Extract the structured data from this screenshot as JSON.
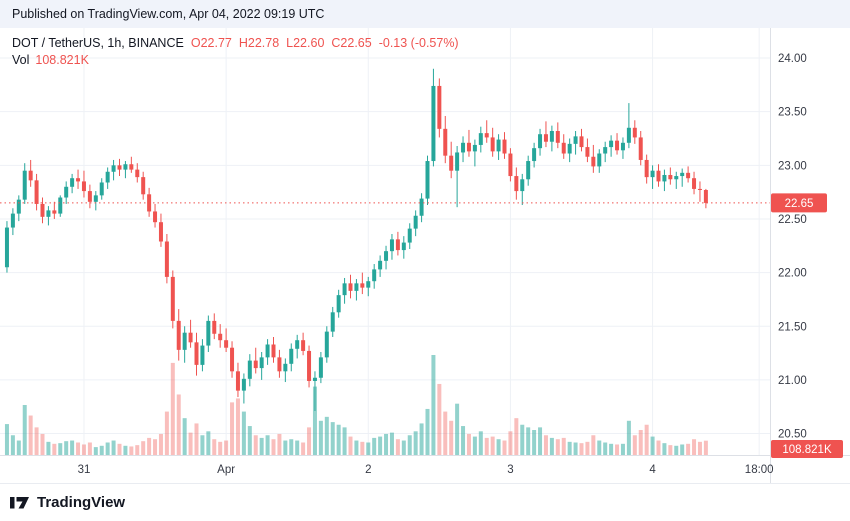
{
  "publish_bar": {
    "text": "Published on TradingView.com, Apr 04, 2022 09:19 UTC"
  },
  "legend": {
    "symbol_title": "DOT / TetherUS, 1h, BINANCE",
    "ohlc": [
      {
        "label": "O",
        "value": "22.77"
      },
      {
        "label": "H",
        "value": "22.78"
      },
      {
        "label": "L",
        "value": "22.60"
      },
      {
        "label": "C",
        "value": "22.65"
      }
    ],
    "change": "-0.13 (-0.57%)",
    "vol_label": "Vol",
    "vol_value": "108.821K"
  },
  "footer": {
    "brand": "TradingView"
  },
  "colors": {
    "up": "#26a69a",
    "down": "#ef5350",
    "vol_up": "rgba(38,166,154,0.5)",
    "vol_down": "rgba(239,83,80,0.38)",
    "grid": "#eef1f6",
    "axis_border": "#dde0e6",
    "axis_text": "#363a45",
    "badge_bg": "#ef5350",
    "badge_text": "#ffffff",
    "publish_bg": "#f0f3fa",
    "text_dark": "#131722"
  },
  "chart_data": {
    "type": "candlestick",
    "title": "DOT / TetherUS, 1h, BINANCE",
    "exchange": "BINANCE",
    "interval": "1h",
    "legend_open": 22.77,
    "legend_high": 22.78,
    "legend_low": 22.6,
    "legend_close": 22.65,
    "legend_change": -0.13,
    "legend_change_pct": -0.57,
    "last_price": 22.65,
    "last_price_label": "22.65",
    "last_volume_label": "108.821K",
    "volume_unit": "K",
    "volume_scale_max": 760,
    "y_axis": {
      "ticks": [
        24.0,
        23.5,
        23.0,
        22.5,
        22.0,
        21.5,
        21.0,
        20.5
      ],
      "view_min": 20.3,
      "view_max": 24.28,
      "grid": true
    },
    "x_axis": {
      "total_slots": 130,
      "ticks": [
        {
          "index": 13,
          "label": "31"
        },
        {
          "index": 37,
          "label": "Apr"
        },
        {
          "index": 61,
          "label": "2"
        },
        {
          "index": 85,
          "label": "3"
        },
        {
          "index": 109,
          "label": "4"
        },
        {
          "index": 127,
          "label": "18:00"
        }
      ]
    },
    "candles": [
      [
        22.05,
        22.48,
        22.0,
        22.42,
        235
      ],
      [
        22.42,
        22.6,
        22.35,
        22.55,
        150
      ],
      [
        22.55,
        22.72,
        22.48,
        22.68,
        110
      ],
      [
        22.68,
        23.02,
        22.64,
        22.95,
        380
      ],
      [
        22.95,
        23.05,
        22.8,
        22.86,
        300
      ],
      [
        22.86,
        22.92,
        22.58,
        22.64,
        210
      ],
      [
        22.64,
        22.7,
        22.46,
        22.52,
        160
      ],
      [
        22.52,
        22.62,
        22.44,
        22.58,
        100
      ],
      [
        22.58,
        22.66,
        22.5,
        22.55,
        85
      ],
      [
        22.55,
        22.72,
        22.52,
        22.7,
        90
      ],
      [
        22.7,
        22.85,
        22.64,
        22.8,
        105
      ],
      [
        22.8,
        22.92,
        22.74,
        22.88,
        110
      ],
      [
        22.88,
        22.96,
        22.78,
        22.85,
        95
      ],
      [
        22.85,
        22.95,
        22.7,
        22.76,
        80
      ],
      [
        22.76,
        22.82,
        22.6,
        22.66,
        95
      ],
      [
        22.66,
        22.76,
        22.58,
        22.72,
        60
      ],
      [
        22.72,
        22.88,
        22.68,
        22.84,
        70
      ],
      [
        22.84,
        22.98,
        22.78,
        22.94,
        95
      ],
      [
        22.94,
        23.05,
        22.86,
        23.0,
        110
      ],
      [
        23.0,
        23.06,
        22.9,
        22.96,
        85
      ],
      [
        22.96,
        23.04,
        22.88,
        23.01,
        70
      ],
      [
        23.01,
        23.08,
        22.93,
        22.96,
        65
      ],
      [
        22.96,
        23.02,
        22.84,
        22.89,
        75
      ],
      [
        22.89,
        22.94,
        22.68,
        22.73,
        105
      ],
      [
        22.73,
        22.79,
        22.52,
        22.57,
        130
      ],
      [
        22.57,
        22.64,
        22.42,
        22.47,
        120
      ],
      [
        22.47,
        22.55,
        22.24,
        22.29,
        160
      ],
      [
        22.29,
        22.36,
        21.9,
        21.96,
        330
      ],
      [
        21.96,
        22.02,
        21.48,
        21.55,
        700
      ],
      [
        21.55,
        21.66,
        21.18,
        21.28,
        460
      ],
      [
        21.28,
        21.5,
        21.16,
        21.44,
        280
      ],
      [
        21.44,
        21.56,
        21.3,
        21.35,
        170
      ],
      [
        21.35,
        21.44,
        21.04,
        21.14,
        240
      ],
      [
        21.14,
        21.38,
        21.08,
        21.32,
        150
      ],
      [
        21.32,
        21.6,
        21.26,
        21.55,
        180
      ],
      [
        21.55,
        21.62,
        21.38,
        21.43,
        120
      ],
      [
        21.43,
        21.52,
        21.3,
        21.37,
        100
      ],
      [
        21.37,
        21.48,
        21.26,
        21.3,
        110
      ],
      [
        21.3,
        21.36,
        21.02,
        21.08,
        400
      ],
      [
        21.08,
        21.16,
        20.84,
        20.9,
        430
      ],
      [
        20.9,
        21.06,
        20.78,
        21.01,
        330
      ],
      [
        21.01,
        21.24,
        20.94,
        21.18,
        220
      ],
      [
        21.18,
        21.3,
        21.06,
        21.11,
        150
      ],
      [
        21.11,
        21.26,
        21.0,
        21.21,
        130
      ],
      [
        21.21,
        21.38,
        21.14,
        21.33,
        150
      ],
      [
        21.33,
        21.4,
        21.16,
        21.21,
        120
      ],
      [
        21.21,
        21.28,
        21.02,
        21.08,
        160
      ],
      [
        21.08,
        21.2,
        20.98,
        21.15,
        110
      ],
      [
        21.15,
        21.34,
        21.08,
        21.29,
        120
      ],
      [
        21.29,
        21.42,
        21.2,
        21.37,
        110
      ],
      [
        21.37,
        21.44,
        21.23,
        21.27,
        95
      ],
      [
        21.27,
        21.32,
        20.93,
        20.99,
        210
      ],
      [
        20.99,
        21.08,
        20.71,
        21.02,
        520
      ],
      [
        21.02,
        21.26,
        20.97,
        21.21,
        260
      ],
      [
        21.21,
        21.5,
        21.16,
        21.45,
        290
      ],
      [
        21.45,
        21.68,
        21.4,
        21.63,
        250
      ],
      [
        21.63,
        21.84,
        21.58,
        21.79,
        230
      ],
      [
        21.79,
        21.95,
        21.71,
        21.9,
        210
      ],
      [
        21.9,
        21.98,
        21.76,
        21.83,
        140
      ],
      [
        21.83,
        21.94,
        21.74,
        21.9,
        110
      ],
      [
        21.9,
        22.0,
        21.8,
        21.86,
        100
      ],
      [
        21.86,
        21.96,
        21.78,
        21.92,
        95
      ],
      [
        21.92,
        22.08,
        21.85,
        22.03,
        130
      ],
      [
        22.03,
        22.16,
        21.96,
        22.11,
        140
      ],
      [
        22.11,
        22.25,
        22.03,
        22.2,
        160
      ],
      [
        22.2,
        22.36,
        22.12,
        22.31,
        170
      ],
      [
        22.31,
        22.38,
        22.16,
        22.21,
        120
      ],
      [
        22.21,
        22.34,
        22.13,
        22.28,
        110
      ],
      [
        22.28,
        22.46,
        22.22,
        22.41,
        150
      ],
      [
        22.41,
        22.58,
        22.34,
        22.53,
        180
      ],
      [
        22.53,
        22.74,
        22.47,
        22.69,
        240
      ],
      [
        22.69,
        23.09,
        22.63,
        23.04,
        350
      ],
      [
        23.04,
        23.9,
        22.99,
        23.74,
        760
      ],
      [
        23.74,
        23.81,
        23.26,
        23.34,
        540
      ],
      [
        23.34,
        23.46,
        23.02,
        23.09,
        330
      ],
      [
        23.09,
        23.22,
        22.88,
        22.95,
        260
      ],
      [
        22.95,
        23.18,
        22.61,
        23.12,
        390
      ],
      [
        23.12,
        23.27,
        23.03,
        23.21,
        220
      ],
      [
        23.21,
        23.33,
        23.08,
        23.13,
        160
      ],
      [
        23.13,
        23.24,
        22.99,
        23.19,
        140
      ],
      [
        23.19,
        23.36,
        23.12,
        23.3,
        180
      ],
      [
        23.3,
        23.42,
        23.21,
        23.26,
        130
      ],
      [
        23.26,
        23.35,
        23.08,
        23.13,
        140
      ],
      [
        23.13,
        23.29,
        23.05,
        23.24,
        120
      ],
      [
        23.24,
        23.31,
        23.06,
        23.11,
        110
      ],
      [
        23.11,
        23.16,
        22.85,
        22.9,
        180
      ],
      [
        22.9,
        22.98,
        22.68,
        22.76,
        280
      ],
      [
        22.76,
        22.92,
        22.63,
        22.87,
        230
      ],
      [
        22.87,
        23.09,
        22.81,
        23.04,
        210
      ],
      [
        23.04,
        23.21,
        22.98,
        23.16,
        190
      ],
      [
        23.16,
        23.34,
        23.09,
        23.29,
        210
      ],
      [
        23.29,
        23.41,
        23.17,
        23.22,
        150
      ],
      [
        23.22,
        23.37,
        23.13,
        23.32,
        130
      ],
      [
        23.32,
        23.4,
        23.16,
        23.21,
        120
      ],
      [
        23.21,
        23.29,
        23.06,
        23.11,
        130
      ],
      [
        23.11,
        23.25,
        23.03,
        23.2,
        100
      ],
      [
        23.2,
        23.32,
        23.1,
        23.27,
        95
      ],
      [
        23.27,
        23.34,
        23.13,
        23.17,
        90
      ],
      [
        23.17,
        23.25,
        23.03,
        23.08,
        100
      ],
      [
        23.08,
        23.19,
        22.93,
        22.99,
        150
      ],
      [
        22.99,
        23.15,
        22.93,
        23.11,
        110
      ],
      [
        23.11,
        23.22,
        23.03,
        23.17,
        95
      ],
      [
        23.17,
        23.28,
        23.08,
        23.23,
        85
      ],
      [
        23.23,
        23.3,
        23.1,
        23.14,
        80
      ],
      [
        23.14,
        23.26,
        23.06,
        23.21,
        85
      ],
      [
        23.21,
        23.58,
        23.16,
        23.35,
        260
      ],
      [
        23.35,
        23.42,
        23.2,
        23.26,
        150
      ],
      [
        23.26,
        23.32,
        23.0,
        23.05,
        190
      ],
      [
        23.05,
        23.1,
        22.83,
        22.89,
        230
      ],
      [
        22.89,
        23.0,
        22.78,
        22.95,
        140
      ],
      [
        22.95,
        23.01,
        22.8,
        22.85,
        110
      ],
      [
        22.85,
        22.96,
        22.76,
        22.91,
        90
      ],
      [
        22.91,
        22.98,
        22.82,
        22.87,
        75
      ],
      [
        22.87,
        22.94,
        22.78,
        22.9,
        70
      ],
      [
        22.9,
        22.97,
        22.8,
        22.93,
        80
      ],
      [
        22.93,
        22.99,
        22.84,
        22.88,
        85
      ],
      [
        22.88,
        22.94,
        22.73,
        22.78,
        120
      ],
      [
        22.78,
        22.85,
        22.66,
        22.77,
        100
      ],
      [
        22.77,
        22.78,
        22.6,
        22.65,
        108.821
      ]
    ]
  }
}
